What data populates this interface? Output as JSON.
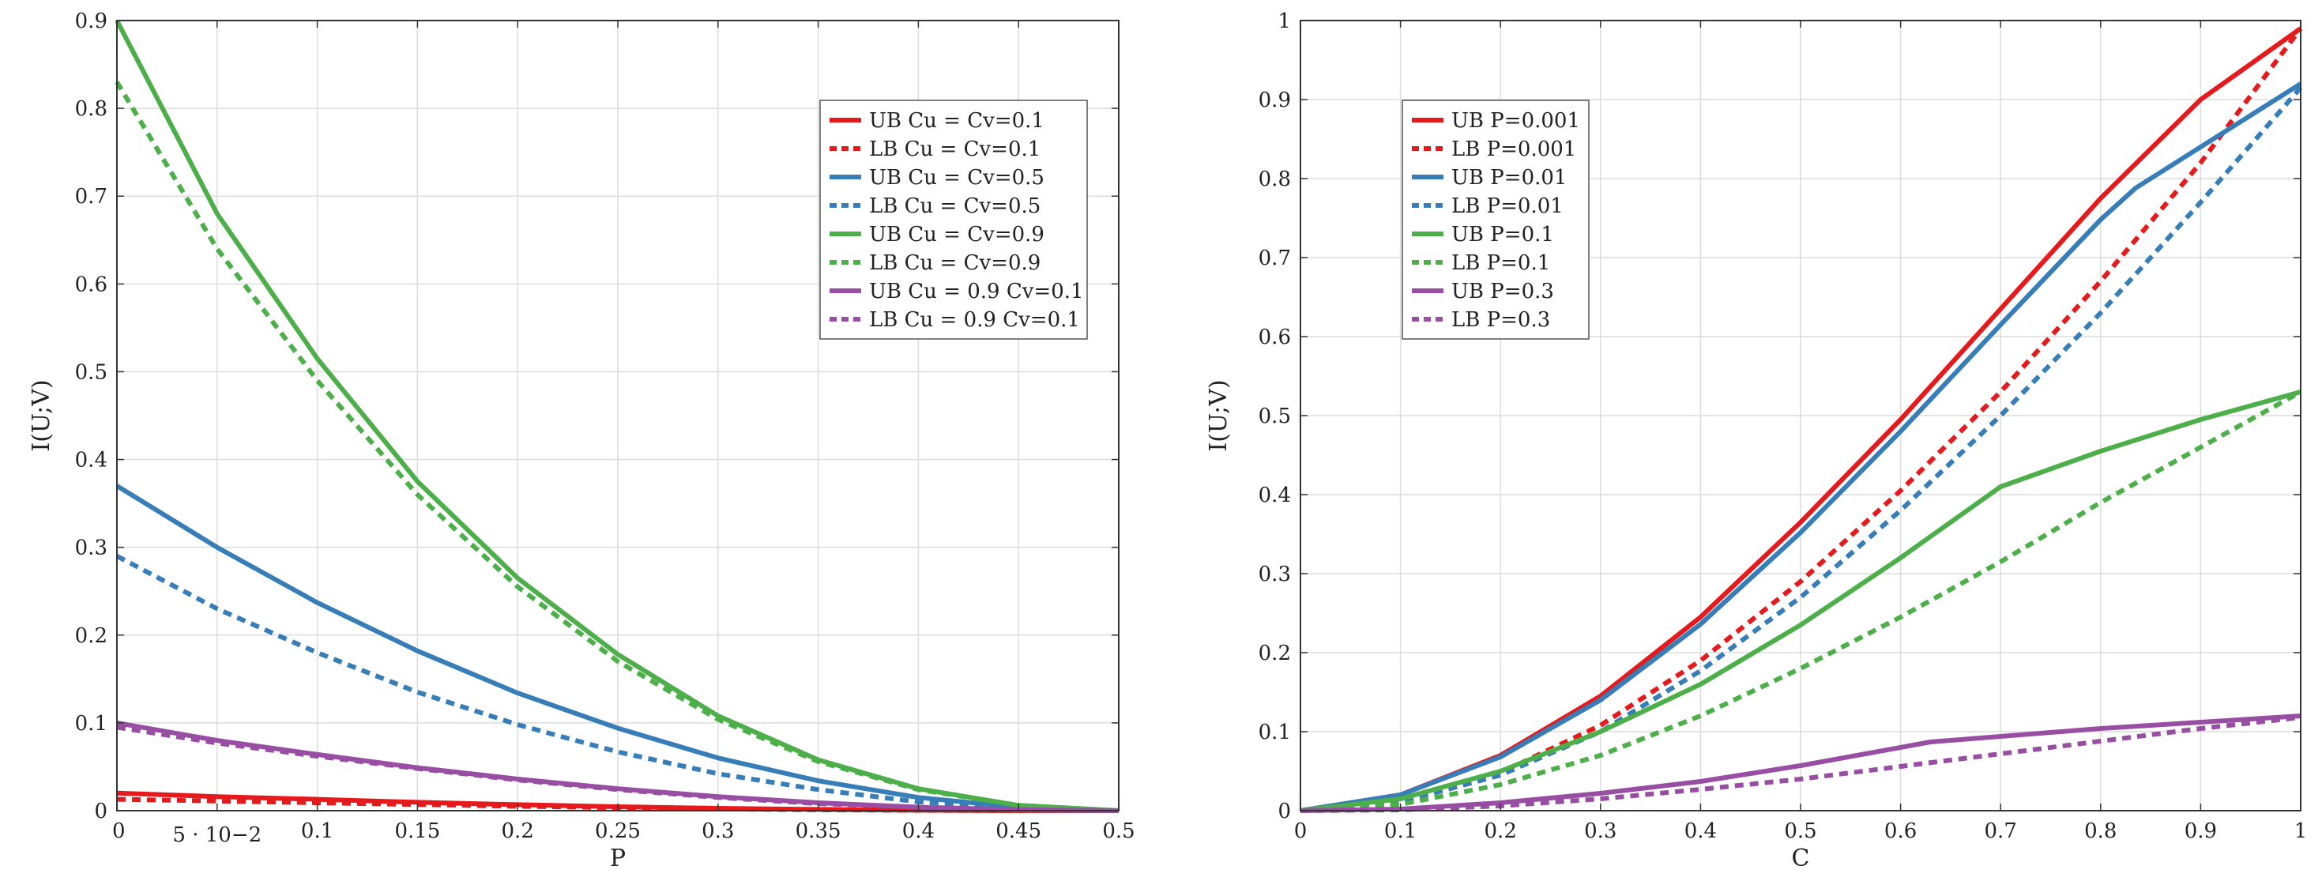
{
  "chart_data": [
    {
      "type": "line",
      "xlabel": "P",
      "ylabel": "I(U;V)",
      "xlim": [
        0,
        0.5
      ],
      "ylim": [
        0,
        0.9
      ],
      "grid": true,
      "legend_position": "top-right",
      "x_ticks": [
        {
          "value": 0,
          "label": "0"
        },
        {
          "value": 0.05,
          "label": "5 · 10−2"
        },
        {
          "value": 0.1,
          "label": "0.1"
        },
        {
          "value": 0.15,
          "label": "0.15"
        },
        {
          "value": 0.2,
          "label": "0.2"
        },
        {
          "value": 0.25,
          "label": "0.25"
        },
        {
          "value": 0.3,
          "label": "0.3"
        },
        {
          "value": 0.35,
          "label": "0.35"
        },
        {
          "value": 0.4,
          "label": "0.4"
        },
        {
          "value": 0.45,
          "label": "0.45"
        },
        {
          "value": 0.5,
          "label": "0.5"
        }
      ],
      "y_ticks": [
        {
          "value": 0,
          "label": "0"
        },
        {
          "value": 0.1,
          "label": "0.1"
        },
        {
          "value": 0.2,
          "label": "0.2"
        },
        {
          "value": 0.3,
          "label": "0.3"
        },
        {
          "value": 0.4,
          "label": "0.4"
        },
        {
          "value": 0.5,
          "label": "0.5"
        },
        {
          "value": 0.6,
          "label": "0.6"
        },
        {
          "value": 0.7,
          "label": "0.7"
        },
        {
          "value": 0.8,
          "label": "0.8"
        },
        {
          "value": 0.9,
          "label": "0.9"
        }
      ],
      "series": [
        {
          "name": "UB Cu = Cv=0.1",
          "color": "#e41a1c",
          "dashed": false,
          "x": [
            0,
            0.05,
            0.1,
            0.15,
            0.2,
            0.25,
            0.3,
            0.35,
            0.4,
            0.45,
            0.5
          ],
          "y": [
            0.02,
            0.016,
            0.013,
            0.0095,
            0.0068,
            0.0045,
            0.0027,
            0.0014,
            0.0005,
            0.0001,
            0
          ]
        },
        {
          "name": "LB Cu = Cv=0.1",
          "color": "#e41a1c",
          "dashed": true,
          "x": [
            0,
            0.05,
            0.1,
            0.15,
            0.2,
            0.25,
            0.3,
            0.35,
            0.4,
            0.45,
            0.5
          ],
          "y": [
            0.013,
            0.011,
            0.009,
            0.007,
            0.005,
            0.0034,
            0.002,
            0.001,
            0.0004,
            0.0001,
            0
          ]
        },
        {
          "name": "UB Cu = Cv=0.5",
          "color": "#377eb8",
          "dashed": false,
          "x": [
            0,
            0.05,
            0.1,
            0.15,
            0.2,
            0.25,
            0.3,
            0.35,
            0.4,
            0.45,
            0.5
          ],
          "y": [
            0.37,
            0.3,
            0.237,
            0.182,
            0.134,
            0.094,
            0.06,
            0.034,
            0.015,
            0.004,
            0
          ]
        },
        {
          "name": "LB Cu = Cv=0.5",
          "color": "#377eb8",
          "dashed": true,
          "x": [
            0,
            0.05,
            0.1,
            0.15,
            0.2,
            0.25,
            0.3,
            0.35,
            0.4,
            0.45,
            0.5
          ],
          "y": [
            0.29,
            0.23,
            0.18,
            0.135,
            0.098,
            0.067,
            0.042,
            0.024,
            0.01,
            0.003,
            0
          ]
        },
        {
          "name": "UB Cu = Cv=0.9",
          "color": "#4daf4a",
          "dashed": false,
          "x": [
            0,
            0.05,
            0.1,
            0.15,
            0.2,
            0.25,
            0.3,
            0.35,
            0.4,
            0.45,
            0.5
          ],
          "y": [
            0.9,
            0.68,
            0.515,
            0.375,
            0.265,
            0.178,
            0.108,
            0.058,
            0.025,
            0.006,
            0
          ]
        },
        {
          "name": "LB Cu = Cv=0.9",
          "color": "#4daf4a",
          "dashed": true,
          "x": [
            0,
            0.05,
            0.1,
            0.15,
            0.2,
            0.25,
            0.3,
            0.35,
            0.4,
            0.45,
            0.5
          ],
          "y": [
            0.83,
            0.64,
            0.49,
            0.36,
            0.255,
            0.17,
            0.104,
            0.056,
            0.024,
            0.006,
            0
          ]
        },
        {
          "name": "UB Cu = 0.9 Cv=0.1",
          "color": "#984ea3",
          "dashed": false,
          "x": [
            0,
            0.05,
            0.1,
            0.15,
            0.2,
            0.25,
            0.3,
            0.35,
            0.4,
            0.45,
            0.5
          ],
          "y": [
            0.1,
            0.08,
            0.064,
            0.049,
            0.036,
            0.025,
            0.016,
            0.009,
            0.004,
            0.001,
            0
          ]
        },
        {
          "name": "LB Cu = 0.9 Cv=0.1",
          "color": "#984ea3",
          "dashed": true,
          "x": [
            0,
            0.05,
            0.1,
            0.15,
            0.2,
            0.25,
            0.3,
            0.35,
            0.4,
            0.45,
            0.5
          ],
          "y": [
            0.095,
            0.077,
            0.062,
            0.048,
            0.035,
            0.024,
            0.015,
            0.008,
            0.004,
            0.001,
            0
          ]
        }
      ]
    },
    {
      "type": "line",
      "xlabel": "C",
      "ylabel": "I(U;V)",
      "xlim": [
        0,
        1
      ],
      "ylim": [
        0,
        1
      ],
      "grid": true,
      "legend_position": "top-left",
      "x_ticks": [
        {
          "value": 0,
          "label": "0"
        },
        {
          "value": 0.1,
          "label": "0.1"
        },
        {
          "value": 0.2,
          "label": "0.2"
        },
        {
          "value": 0.3,
          "label": "0.3"
        },
        {
          "value": 0.4,
          "label": "0.4"
        },
        {
          "value": 0.5,
          "label": "0.5"
        },
        {
          "value": 0.6,
          "label": "0.6"
        },
        {
          "value": 0.7,
          "label": "0.7"
        },
        {
          "value": 0.8,
          "label": "0.8"
        },
        {
          "value": 0.9,
          "label": "0.9"
        },
        {
          "value": 1,
          "label": "1"
        }
      ],
      "y_ticks": [
        {
          "value": 0,
          "label": "0"
        },
        {
          "value": 0.1,
          "label": "0.1"
        },
        {
          "value": 0.2,
          "label": "0.2"
        },
        {
          "value": 0.3,
          "label": "0.3"
        },
        {
          "value": 0.4,
          "label": "0.4"
        },
        {
          "value": 0.5,
          "label": "0.5"
        },
        {
          "value": 0.6,
          "label": "0.6"
        },
        {
          "value": 0.7,
          "label": "0.7"
        },
        {
          "value": 0.8,
          "label": "0.8"
        },
        {
          "value": 0.9,
          "label": "0.9"
        },
        {
          "value": 1,
          "label": "1"
        }
      ],
      "series": [
        {
          "name": "UB P=0.001",
          "color": "#e41a1c",
          "dashed": false,
          "x": [
            0,
            0.1,
            0.2,
            0.3,
            0.4,
            0.5,
            0.6,
            0.7,
            0.8,
            0.9,
            1
          ],
          "y": [
            0,
            0.02,
            0.07,
            0.145,
            0.245,
            0.365,
            0.495,
            0.635,
            0.775,
            0.9,
            0.99
          ]
        },
        {
          "name": "LB P=0.001",
          "color": "#e41a1c",
          "dashed": true,
          "x": [
            0,
            0.1,
            0.2,
            0.3,
            0.4,
            0.5,
            0.6,
            0.7,
            0.8,
            0.9,
            1
          ],
          "y": [
            0,
            0.012,
            0.048,
            0.108,
            0.19,
            0.29,
            0.405,
            0.53,
            0.67,
            0.82,
            0.99
          ]
        },
        {
          "name": "UB P=0.01",
          "color": "#377eb8",
          "dashed": false,
          "x": [
            0,
            0.1,
            0.2,
            0.3,
            0.4,
            0.5,
            0.6,
            0.7,
            0.8,
            0.835,
            0.9,
            1
          ],
          "y": [
            0,
            0.02,
            0.068,
            0.14,
            0.236,
            0.352,
            0.48,
            0.615,
            0.748,
            0.788,
            0.84,
            0.92
          ]
        },
        {
          "name": "LB P=0.01",
          "color": "#377eb8",
          "dashed": true,
          "x": [
            0,
            0.1,
            0.2,
            0.3,
            0.4,
            0.5,
            0.6,
            0.7,
            0.8,
            0.9,
            1
          ],
          "y": [
            0,
            0.011,
            0.045,
            0.1,
            0.177,
            0.27,
            0.38,
            0.5,
            0.63,
            0.77,
            0.915
          ]
        },
        {
          "name": "UB P=0.1",
          "color": "#4daf4a",
          "dashed": false,
          "x": [
            0,
            0.1,
            0.2,
            0.3,
            0.4,
            0.5,
            0.6,
            0.7,
            0.8,
            0.9,
            1
          ],
          "y": [
            0,
            0.015,
            0.05,
            0.1,
            0.16,
            0.235,
            0.32,
            0.41,
            0.455,
            0.495,
            0.53
          ]
        },
        {
          "name": "LB P=0.1",
          "color": "#4daf4a",
          "dashed": true,
          "x": [
            0,
            0.1,
            0.2,
            0.3,
            0.4,
            0.5,
            0.6,
            0.7,
            0.8,
            0.9,
            1
          ],
          "y": [
            0,
            0.008,
            0.033,
            0.07,
            0.12,
            0.18,
            0.245,
            0.315,
            0.39,
            0.46,
            0.53
          ]
        },
        {
          "name": "UB P=0.3",
          "color": "#984ea3",
          "dashed": false,
          "x": [
            0,
            0.1,
            0.2,
            0.3,
            0.4,
            0.5,
            0.63,
            0.7,
            0.8,
            0.9,
            1
          ],
          "y": [
            0,
            0.002,
            0.01,
            0.022,
            0.037,
            0.057,
            0.087,
            0.094,
            0.104,
            0.112,
            0.12
          ]
        },
        {
          "name": "LB P=0.3",
          "color": "#984ea3",
          "dashed": true,
          "x": [
            0,
            0.1,
            0.2,
            0.3,
            0.4,
            0.5,
            0.6,
            0.7,
            0.8,
            0.9,
            1
          ],
          "y": [
            0,
            0.001,
            0.006,
            0.015,
            0.027,
            0.04,
            0.056,
            0.072,
            0.088,
            0.104,
            0.118
          ]
        }
      ]
    }
  ]
}
